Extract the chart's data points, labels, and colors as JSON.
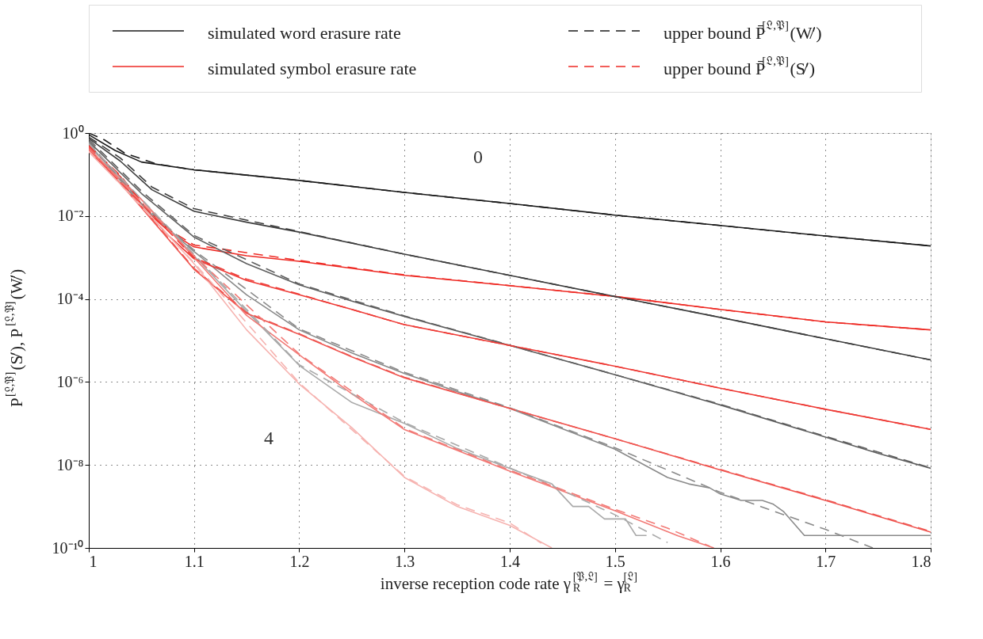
{
  "chart_data": {
    "type": "line",
    "xlabel": "inverse reception code rate γ$_{R}$$^{[𝔓,𝔏]}$ = γ$_{R}$$^{[𝔏]}$",
    "ylabel": "P$^{[𝔏,𝔓]}$(S̸′), P$^{[𝔏,𝔓]}$(W̸′)",
    "xlim": [
      1,
      1.8
    ],
    "xticks": [
      1,
      1.1,
      1.2,
      1.3,
      1.4,
      1.5,
      1.6,
      1.7,
      1.8
    ],
    "ylim": [
      1e-10,
      1
    ],
    "log": true,
    "yticks": [
      {
        "value": 1,
        "label": "10⁰"
      },
      {
        "value": 0.01,
        "label": "10⁻²"
      },
      {
        "value": 0.0001,
        "label": "10⁻⁴"
      },
      {
        "value": 1e-06,
        "label": "10⁻⁶"
      },
      {
        "value": 1e-08,
        "label": "10⁻⁸"
      },
      {
        "value": 1e-10,
        "label": "10⁻¹⁰"
      }
    ],
    "grid": true,
    "legend": "top",
    "annotations": [
      "0",
      "4"
    ],
    "series": [
      {
        "name": "simulated word erasure rate",
        "color": "#1a1a1a",
        "line_style": "solid",
        "x": [
          1,
          1.025,
          1.05,
          1.1,
          1.2,
          1.3,
          1.4,
          1.5,
          1.6,
          1.7,
          1.8
        ],
        "values": [
          0.91,
          0.38,
          0.2,
          0.13,
          0.072,
          0.037,
          0.02,
          0.0105,
          0.0059,
          0.0033,
          0.0019
        ]
      },
      {
        "name": "simulated symbol erasure rate",
        "color": "#ee2a24",
        "line_style": "solid",
        "x": [
          1,
          1.03,
          1.057,
          1.077,
          1.1,
          1.15,
          1.2,
          1.3,
          1.4,
          1.5,
          1.6,
          1.7,
          1.8
        ],
        "values": [
          0.48,
          0.089,
          0.0115,
          0.0041,
          0.0018,
          0.0011,
          0.00081,
          0.00037,
          0.00021,
          0.000115,
          5.6e-05,
          2.8e-05,
          1.8e-05
        ]
      },
      {
        "name": "upper bound P̄$^{[𝔏,𝔓]}$(W̸′)",
        "color": "#1a1a1a",
        "line_style": "dashed",
        "x": [
          1,
          1.015,
          1.034,
          1.064,
          1.1,
          1.2,
          1.3,
          1.4,
          1.5,
          1.6,
          1.7,
          1.8
        ],
        "values": [
          1.0,
          0.68,
          0.33,
          0.18,
          0.13,
          0.072,
          0.037,
          0.02,
          0.0105,
          0.0059,
          0.0033,
          0.0019
        ]
      },
      {
        "name": "upper bound P̄$^{[𝔏,𝔓]}$(S̸′)",
        "color": "#ee2a24",
        "line_style": "dashed",
        "x": [
          1,
          1.03,
          1.057,
          1.077,
          1.1,
          1.2,
          1.3,
          1.4,
          1.5,
          1.6,
          1.7,
          1.8
        ],
        "values": [
          0.5,
          0.095,
          0.013,
          0.0045,
          0.002,
          0.00085,
          0.00038,
          0.00021,
          0.000115,
          5.6e-05,
          2.8e-05,
          1.8e-05
        ]
      },
      {
        "color": "#3d3d3d",
        "line_style": "solid",
        "x": [
          1,
          1.03,
          1.06,
          1.1,
          1.15,
          1.2,
          1.3,
          1.4,
          1.5,
          1.6,
          1.7,
          1.8
        ],
        "values": [
          0.74,
          0.21,
          0.043,
          0.013,
          0.0071,
          0.0041,
          0.0012,
          0.00037,
          0.000115,
          3.6e-05,
          1.1e-05,
          3.4e-06
        ]
      },
      {
        "color": "#3d3d3d",
        "line_style": "dashed",
        "x": [
          1,
          1.03,
          1.06,
          1.1,
          1.2,
          1.3,
          1.4,
          1.5,
          1.6,
          1.7,
          1.8
        ],
        "values": [
          0.8,
          0.25,
          0.05,
          0.015,
          0.0042,
          0.0012,
          0.00037,
          0.000115,
          3.6e-05,
          1.1e-05,
          3.4e-06
        ]
      },
      {
        "color": "#5f5f5f",
        "line_style": "solid",
        "x": [
          1,
          1.05,
          1.1,
          1.15,
          1.2,
          1.25,
          1.3,
          1.4,
          1.5,
          1.6,
          1.7,
          1.75,
          1.8
        ],
        "values": [
          0.63,
          0.035,
          0.0031,
          0.00071,
          0.00022,
          8.9e-05,
          3.8e-05,
          7.6e-06,
          1.5e-06,
          2.8e-07,
          4.7e-08,
          1.9e-08,
          8.3e-09
        ]
      },
      {
        "color": "#5f5f5f",
        "line_style": "dashed",
        "x": [
          1,
          1.05,
          1.1,
          1.2,
          1.3,
          1.4,
          1.5,
          1.6,
          1.7,
          1.8
        ],
        "values": [
          0.7,
          0.04,
          0.0034,
          0.00023,
          3.9e-05,
          7.7e-06,
          1.5e-06,
          2.9e-07,
          4.9e-08,
          8.5e-09
        ]
      },
      {
        "color": "#8a8a8a",
        "line_style": "solid",
        "x": [
          1,
          1.05,
          1.1,
          1.15,
          1.2,
          1.25,
          1.3,
          1.35,
          1.4,
          1.5,
          1.55,
          1.57,
          1.59,
          1.6,
          1.62,
          1.64,
          1.65,
          1.66,
          1.68,
          1.8
        ],
        "values": [
          0.56,
          0.018,
          0.0014,
          0.000126,
          1.8e-05,
          5e-06,
          1.6e-06,
          5.9e-07,
          2.3e-07,
          2.4e-08,
          5e-09,
          3.5e-09,
          2.8e-09,
          2e-09,
          1.4e-09,
          1.4e-09,
          1.15e-09,
          7.6e-10,
          2e-10,
          2e-10
        ]
      },
      {
        "color": "#8a8a8a",
        "line_style": "dashed",
        "x": [
          1,
          1.05,
          1.1,
          1.2,
          1.3,
          1.4,
          1.5,
          1.6,
          1.7,
          1.745
        ],
        "values": [
          0.6,
          0.02,
          0.0015,
          1.9e-05,
          1.7e-06,
          2.4e-07,
          2.6e-08,
          2.2e-09,
          2.8e-10,
          1e-10
        ]
      },
      {
        "color": "#a9a9a9",
        "line_style": "solid",
        "x": [
          1,
          1.05,
          1.1,
          1.15,
          1.2,
          1.25,
          1.3,
          1.35,
          1.4,
          1.44,
          1.46,
          1.475,
          1.49,
          1.51,
          1.52,
          1.53
        ],
        "values": [
          0.5,
          0.025,
          0.0011,
          5e-05,
          2.5e-06,
          3.2e-07,
          1e-07,
          2.5e-08,
          8.3e-09,
          3.5e-09,
          1e-09,
          1e-09,
          5e-10,
          5e-10,
          2e-10,
          2e-10
        ]
      },
      {
        "color": "#a9a9a9",
        "line_style": "dashed",
        "x": [
          1,
          1.1,
          1.2,
          1.3,
          1.4,
          1.44,
          1.5,
          1.55
        ],
        "values": [
          0.55,
          0.0012,
          2.6e-06,
          1.05e-07,
          8.5e-09,
          3.2e-09,
          6.3e-10,
          1.35e-10
        ]
      },
      {
        "color": "#ee3a35",
        "line_style": "solid",
        "x": [
          1,
          1.05,
          1.075,
          1.1,
          1.15,
          1.2,
          1.25,
          1.3,
          1.4,
          1.5,
          1.6,
          1.7,
          1.8
        ],
        "values": [
          0.38,
          0.018,
          0.0035,
          0.00093,
          0.00028,
          0.000126,
          5.6e-05,
          2.4e-05,
          7.6e-06,
          2.4e-06,
          7.1e-07,
          2.2e-07,
          7.2e-08
        ]
      },
      {
        "color": "#ee3a35",
        "line_style": "dashed",
        "x": [
          1,
          1.05,
          1.1,
          1.15,
          1.2,
          1.3,
          1.4,
          1.5,
          1.6,
          1.7,
          1.8
        ],
        "values": [
          0.4,
          0.02,
          0.001,
          0.0003,
          0.00013,
          2.4e-05,
          7.6e-06,
          2.4e-06,
          7.1e-07,
          2.2e-07,
          7.2e-08
        ]
      },
      {
        "color": "#ef5550",
        "line_style": "solid",
        "x": [
          1,
          1.05,
          1.1,
          1.15,
          1.2,
          1.25,
          1.3,
          1.4,
          1.5,
          1.6,
          1.7,
          1.8
        ],
        "values": [
          0.45,
          0.016,
          0.00052,
          4.5e-05,
          1.4e-05,
          4e-06,
          1.26e-06,
          2.3e-07,
          4.3e-08,
          7.6e-09,
          1.4e-09,
          2.4e-10
        ]
      },
      {
        "color": "#ef5550",
        "line_style": "dashed",
        "x": [
          1,
          1.05,
          1.1,
          1.15,
          1.2,
          1.25,
          1.3,
          1.4,
          1.5,
          1.6,
          1.7,
          1.8
        ],
        "values": [
          0.47,
          0.017,
          0.00055,
          4.7e-05,
          1.45e-05,
          4.1e-06,
          1.3e-06,
          2.3e-07,
          4.3e-08,
          7.8e-09,
          1.45e-09,
          2.5e-10
        ]
      },
      {
        "color": "#f27a76",
        "line_style": "solid",
        "x": [
          1,
          1.05,
          1.1,
          1.15,
          1.2,
          1.25,
          1.3,
          1.4,
          1.5,
          1.56,
          1.594
        ],
        "values": [
          0.4,
          0.025,
          0.001,
          4e-05,
          4.5e-06,
          5.2e-07,
          7.1e-08,
          7.1e-09,
          7.9e-10,
          1.95e-10,
          1e-10
        ]
      },
      {
        "color": "#f27a76",
        "line_style": "dashed",
        "x": [
          1,
          1.1,
          1.2,
          1.3,
          1.4,
          1.5,
          1.55,
          1.59
        ],
        "values": [
          0.42,
          0.0011,
          4.7e-06,
          7.5e-08,
          7.5e-09,
          8.5e-10,
          3e-10,
          1.1e-10
        ]
      },
      {
        "color": "#f6b3b0",
        "line_style": "solid",
        "x": [
          1,
          1.05,
          1.1,
          1.15,
          1.2,
          1.25,
          1.3,
          1.35,
          1.4,
          1.44
        ],
        "values": [
          0.35,
          0.018,
          0.00071,
          1.8e-05,
          8.9e-07,
          7.9e-08,
          5e-09,
          1e-09,
          3.5e-10,
          1e-10
        ]
      },
      {
        "color": "#f6b3b0",
        "line_style": "dashed",
        "x": [
          1,
          1.1,
          1.2,
          1.3,
          1.35,
          1.4,
          1.43
        ],
        "values": [
          0.37,
          0.00075,
          9.5e-07,
          5.3e-09,
          1.1e-09,
          4e-10,
          1.3e-10
        ]
      }
    ]
  }
}
